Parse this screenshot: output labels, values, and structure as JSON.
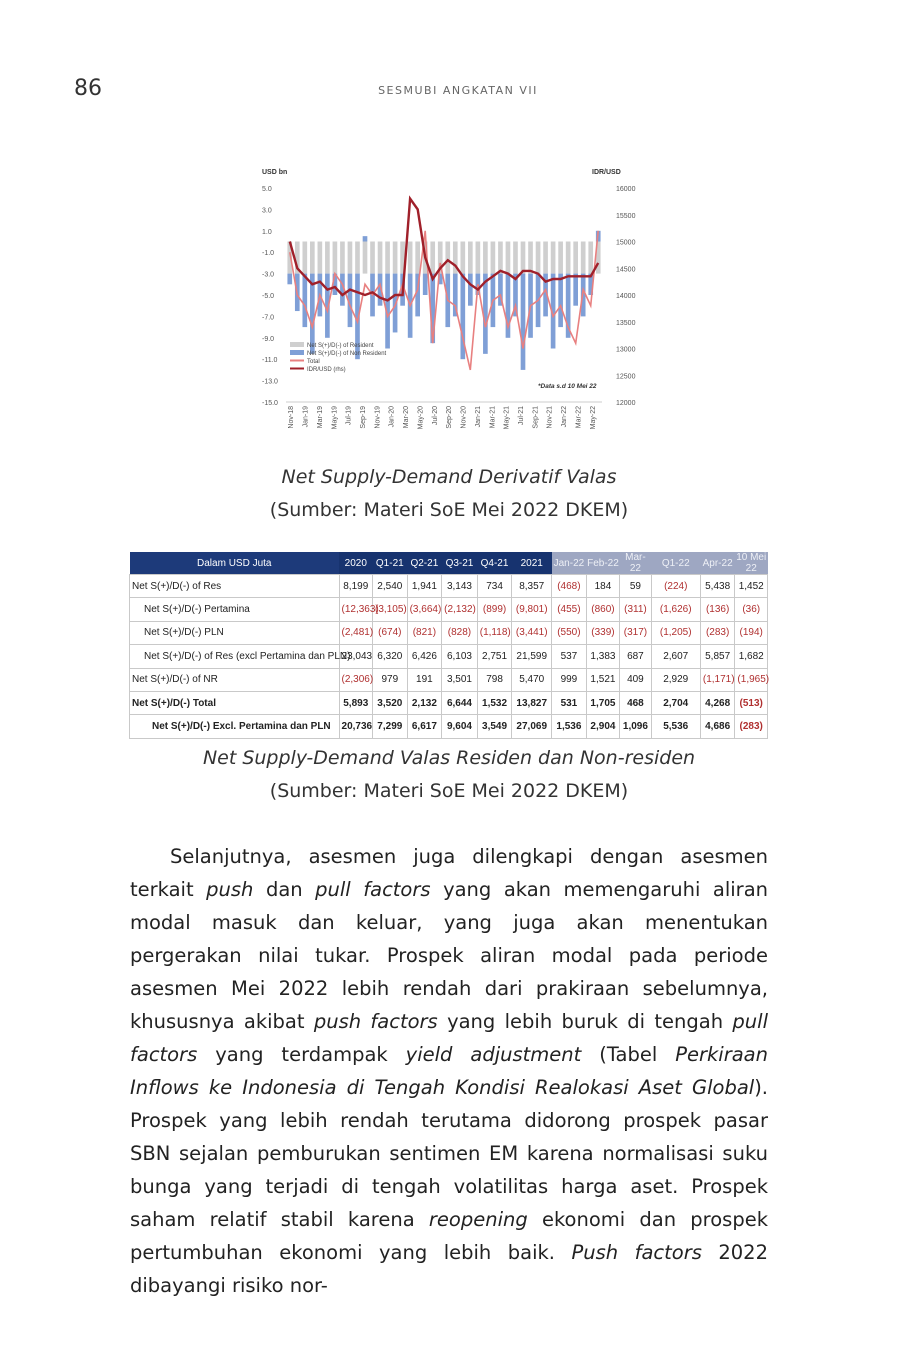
{
  "header": {
    "page_number": "86",
    "running_head": "SESMUBI ANGKATAN VII"
  },
  "figure1": {
    "caption_title": "Net Supply-Demand Derivatif Valas",
    "caption_source": "(Sumber: Materi SoE Mei 2022 DKEM)"
  },
  "chart_data": {
    "type": "bar",
    "left_axis_unit": "USD bn",
    "right_axis_unit": "IDR/USD",
    "left_ticks": [
      "5.0",
      "3.0",
      "1.0",
      "-1.0",
      "-3.0",
      "-5.0",
      "-7.0",
      "-9.0",
      "-11.0",
      "-13.0",
      "-15.0"
    ],
    "right_ticks": [
      "16000",
      "15500",
      "15000",
      "14500",
      "14000",
      "13500",
      "13000",
      "12500",
      "12000"
    ],
    "ylim_left": [
      -15,
      5
    ],
    "ylim_right": [
      12000,
      16000
    ],
    "x_tick_labels": [
      "Nov-18",
      "Jan-19",
      "Mar-19",
      "May-19",
      "Jul-19",
      "Sep-19",
      "Nov-19",
      "Jan-20",
      "Mar-20",
      "May-20",
      "Jul-20",
      "Sep-20",
      "Nov-20",
      "Jan-21",
      "Mar-21",
      "May-21",
      "Jul-21",
      "Sep-21",
      "Nov-21",
      "Jan-22",
      "Mar-22",
      "May-22"
    ],
    "legend": [
      "Net S(+)/D(-) of Resident",
      "Net S(+)/D(-) of Non Resident",
      "Total",
      "IDR/USD (rhs)"
    ],
    "legend_colors": [
      "#cfcfcf",
      "#7f9fd6",
      "#e88080",
      "#a0202a"
    ],
    "note": "*Data s.d 10 Mei 22",
    "resident": [
      -3.0,
      -3.0,
      -3.0,
      -3.0,
      -3.0,
      -3.0,
      -3.0,
      -3.0,
      -3.0,
      -3.0,
      -3.0,
      -3.0,
      -3.0,
      -3.0,
      -3.0,
      -3.0,
      -3.0,
      -3.0,
      -3.0,
      -3.0,
      -3.0,
      -3.0,
      -3.0,
      -3.0,
      -3.0,
      -3.0,
      -3.0,
      -3.0,
      -3.0,
      -3.0,
      -3.0,
      -3.0,
      -3.0,
      -3.0,
      -3.0,
      -3.0,
      -3.0,
      -3.0,
      -3.0,
      -3.0,
      -3.0,
      -3.0
    ],
    "non_resident": [
      -1.0,
      -3.5,
      -5.0,
      -7.5,
      -4.0,
      -6.0,
      -2.0,
      -3.0,
      -5.0,
      -8.0,
      0.5,
      -4.0,
      -3.0,
      -7.0,
      -5.5,
      -3.0,
      -6.0,
      -4.0,
      -2.0,
      -6.5,
      -1.0,
      -5.0,
      -4.0,
      -8.0,
      -3.0,
      -2.0,
      -7.5,
      -5.0,
      -3.0,
      -6.0,
      -4.0,
      -9.0,
      -6.0,
      -5.0,
      -4.0,
      -7.0,
      -5.0,
      -6.0,
      -3.0,
      -4.0,
      -2.0,
      1.0
    ],
    "total": [
      -1.0,
      -5.0,
      -6.0,
      -8.0,
      -5.0,
      -6.5,
      -3.0,
      -4.0,
      -6.0,
      -7.5,
      -4.0,
      -5.0,
      -4.0,
      -7.0,
      -6.0,
      -4.0,
      -6.0,
      -4.5,
      1.0,
      -9.5,
      -2.0,
      -5.5,
      -6.0,
      -9.0,
      -12.0,
      -4.0,
      -8.0,
      -5.5,
      -5.0,
      -8.0,
      -6.0,
      -10.0,
      -6.0,
      -5.5,
      -4.5,
      -7.0,
      -6.0,
      -8.0,
      -9.5,
      -4.5,
      -6.0,
      1.0
    ],
    "idr_usd": [
      15000,
      14500,
      14350,
      14200,
      14250,
      14100,
      14150,
      14000,
      14100,
      14050,
      14000,
      14050,
      13950,
      13900,
      14000,
      14000,
      15800,
      15600,
      14700,
      14300,
      14500,
      14650,
      14550,
      14350,
      14200,
      14100,
      14250,
      14350,
      14450,
      14400,
      14300,
      14450,
      14450,
      14400,
      14250,
      14300,
      14300,
      14350,
      14350,
      14350,
      14350,
      14600
    ]
  },
  "figure2": {
    "caption_title": "Net Supply-Demand Valas Residen dan Non-residen",
    "caption_source": "(Sumber: Materi SoE Mei 2022 DKEM)",
    "table": {
      "headers": [
        "Dalam USD Juta",
        "2020",
        "Q1-21",
        "Q2-21",
        "Q3-21",
        "Q4-21",
        "2021",
        "Jan-22",
        "Feb-22",
        "Mar-22",
        "Q1-22",
        "Apr-22",
        "10 Mei 22"
      ],
      "rows": [
        {
          "label": "Net S(+)/D(-) of Res",
          "indent": 0,
          "bold": false,
          "cells": [
            "8,199",
            "2,540",
            "1,941",
            "3,143",
            "734",
            "8,357",
            "(468)",
            "184",
            "59",
            "(224)",
            "5,438",
            "1,452"
          ]
        },
        {
          "label": "Net S(+)/D(-) Pertamina",
          "indent": 1,
          "bold": false,
          "cells": [
            "(12,363)",
            "(3,105)",
            "(3,664)",
            "(2,132)",
            "(899)",
            "(9,801)",
            "(455)",
            "(860)",
            "(311)",
            "(1,626)",
            "(136)",
            "(36)"
          ]
        },
        {
          "label": "Net S(+)/D(-) PLN",
          "indent": 1,
          "bold": false,
          "cells": [
            "(2,481)",
            "(674)",
            "(821)",
            "(828)",
            "(1,118)",
            "(3,441)",
            "(550)",
            "(339)",
            "(317)",
            "(1,205)",
            "(283)",
            "(194)"
          ]
        },
        {
          "label": "Net S(+)/D(-) of Res (excl Pertamina dan PLN)",
          "indent": 1,
          "bold": false,
          "cells": [
            "23,043",
            "6,320",
            "6,426",
            "6,103",
            "2,751",
            "21,599",
            "537",
            "1,383",
            "687",
            "2,607",
            "5,857",
            "1,682"
          ]
        },
        {
          "label": "Net S(+)/D(-) of NR",
          "indent": 0,
          "bold": false,
          "cells": [
            "(2,306)",
            "979",
            "191",
            "3,501",
            "798",
            "5,470",
            "999",
            "1,521",
            "409",
            "2,929",
            "(1,171)",
            "(1,965)"
          ]
        },
        {
          "label": "Net S(+)/D(-) Total",
          "indent": 0,
          "bold": true,
          "cells": [
            "5,893",
            "3,520",
            "2,132",
            "6,644",
            "1,532",
            "13,827",
            "531",
            "1,705",
            "468",
            "2,704",
            "4,268",
            "(513)"
          ]
        },
        {
          "label": "Net S(+)/D(-) Excl. Pertamina dan PLN",
          "indent": 2,
          "bold": true,
          "cells": [
            "20,736",
            "7,299",
            "6,617",
            "9,604",
            "3,549",
            "27,069",
            "1,536",
            "2,904",
            "1,096",
            "5,536",
            "4,686",
            "(283)"
          ]
        }
      ]
    }
  },
  "body": {
    "p1_a": "Selanjutnya, asesmen juga dilengkapi dengan asesmen terkait ",
    "p1_b": "push",
    "p1_c": " dan ",
    "p1_d": "pull factors",
    "p1_e": " yang akan memengaruhi aliran modal masuk dan keluar, yang juga akan menentukan pergerakan nilai tukar. Prospek aliran modal pada periode asesmen Mei 2022 lebih rendah dari prakiraan sebelumnya, khususnya akibat ",
    "p1_f": "push factors",
    "p1_g": " yang lebih buruk di tengah ",
    "p1_h": "pull factors",
    "p1_i": " yang terdampak ",
    "p1_j": "yield adjustment",
    "p1_k": " (Tabel ",
    "p1_l": "Perkiraan Inflows ke Indonesia di Tengah Kondisi Realokasi Aset Global",
    "p1_m": "). Prospek yang lebih rendah terutama didorong prospek pasar SBN sejalan pemburukan sentimen EM karena normalisasi suku bunga yang terjadi di tengah volatilitas harga aset. Prospek saham relatif stabil karena ",
    "p1_n": "reopening",
    "p1_o": " ekonomi dan prospek pertumbuhan ekonomi yang lebih baik. ",
    "p1_p": "Push factors",
    "p1_q": " 2022 dibayangi risiko nor-"
  }
}
